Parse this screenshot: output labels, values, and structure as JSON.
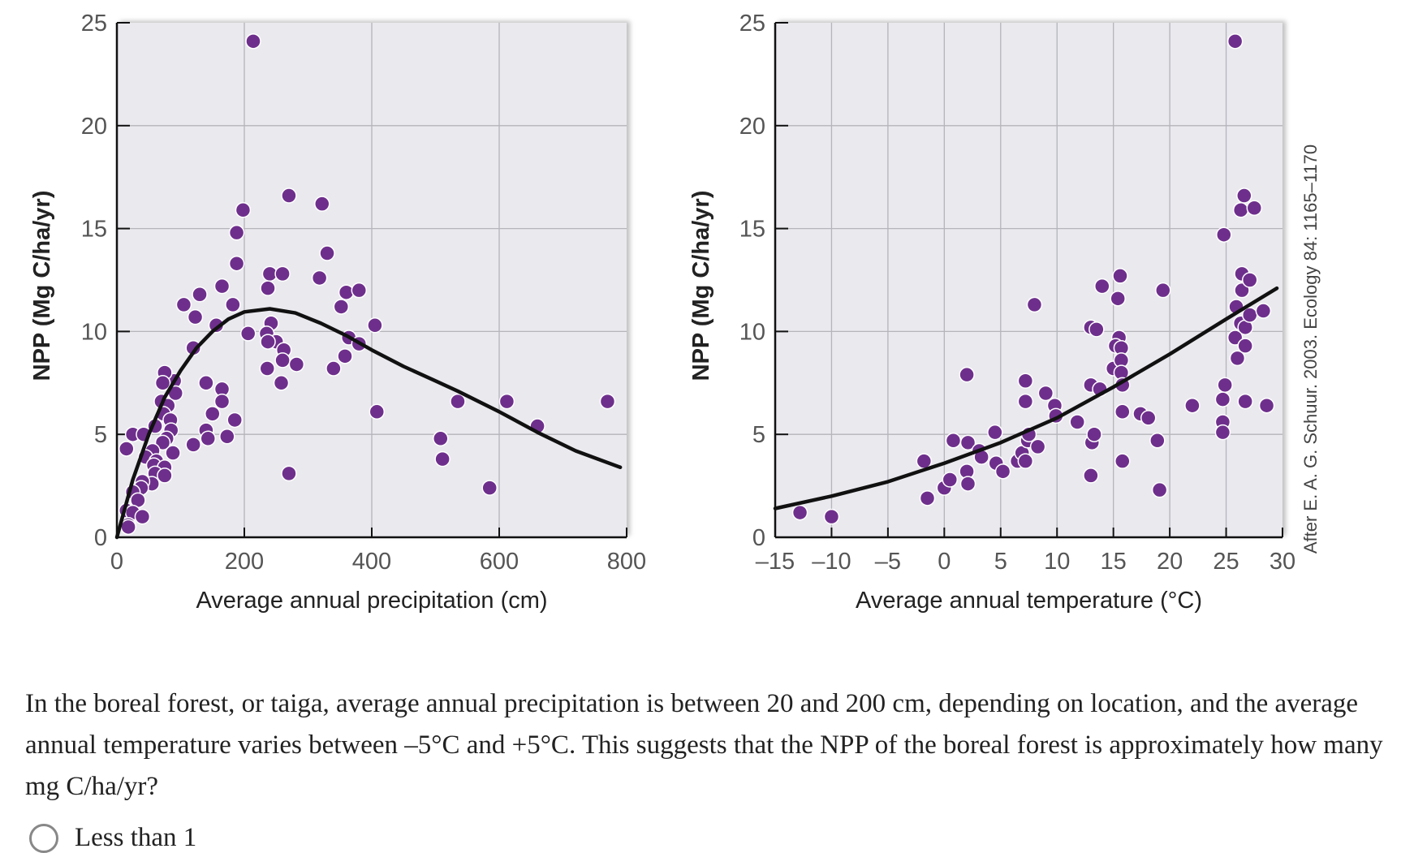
{
  "chart_data": [
    {
      "type": "scatter",
      "xlabel": "Average annual precipitation (cm)",
      "ylabel": "NPP (Mg C/ha/yr)",
      "xlim": [
        0,
        800
      ],
      "ylim": [
        0,
        25
      ],
      "xticks": [
        "0",
        "200",
        "400",
        "600",
        "800"
      ],
      "yticks": [
        "0",
        "5",
        "10",
        "15",
        "20",
        "25"
      ],
      "grid": true,
      "point_color": "#6e2f8c",
      "points": [
        [
          214,
          24.1
        ],
        [
          270,
          16.6
        ],
        [
          322,
          16.2
        ],
        [
          198,
          15.9
        ],
        [
          188,
          14.8
        ],
        [
          188,
          13.3
        ],
        [
          330,
          13.8
        ],
        [
          240,
          12.8
        ],
        [
          260,
          12.8
        ],
        [
          318,
          12.6
        ],
        [
          165,
          12.2
        ],
        [
          237,
          12.1
        ],
        [
          130,
          11.8
        ],
        [
          360,
          11.9
        ],
        [
          380,
          12.0
        ],
        [
          105,
          11.3
        ],
        [
          182,
          11.3
        ],
        [
          352,
          11.2
        ],
        [
          123,
          10.7
        ],
        [
          156,
          10.3
        ],
        [
          242,
          10.4
        ],
        [
          405,
          10.3
        ],
        [
          206,
          9.9
        ],
        [
          235,
          9.9
        ],
        [
          120,
          9.2
        ],
        [
          364,
          9.7
        ],
        [
          380,
          9.4
        ],
        [
          250,
          9.5
        ],
        [
          237,
          9.5
        ],
        [
          262,
          9.1
        ],
        [
          236,
          8.2
        ],
        [
          260,
          8.6
        ],
        [
          282,
          8.4
        ],
        [
          340,
          8.2
        ],
        [
          358,
          8.8
        ],
        [
          258,
          7.5
        ],
        [
          140,
          7.5
        ],
        [
          165,
          7.2
        ],
        [
          90,
          7.6
        ],
        [
          75,
          8.0
        ],
        [
          72,
          7.5
        ],
        [
          92,
          7.0
        ],
        [
          165,
          6.6
        ],
        [
          70,
          6.6
        ],
        [
          80,
          6.4
        ],
        [
          408,
          6.1
        ],
        [
          535,
          6.6
        ],
        [
          612,
          6.6
        ],
        [
          770,
          6.6
        ],
        [
          150,
          6.0
        ],
        [
          73,
          6.0
        ],
        [
          84,
          5.7
        ],
        [
          185,
          5.7
        ],
        [
          660,
          5.4
        ],
        [
          60,
          5.4
        ],
        [
          140,
          5.2
        ],
        [
          85,
          5.2
        ],
        [
          25,
          5.0
        ],
        [
          42,
          5.0
        ],
        [
          173,
          4.9
        ],
        [
          143,
          4.8
        ],
        [
          78,
          4.8
        ],
        [
          72,
          4.6
        ],
        [
          508,
          4.8
        ],
        [
          120,
          4.5
        ],
        [
          15,
          4.3
        ],
        [
          88,
          4.1
        ],
        [
          56,
          4.2
        ],
        [
          45,
          3.9
        ],
        [
          62,
          3.7
        ],
        [
          511,
          3.8
        ],
        [
          270,
          3.1
        ],
        [
          58,
          3.5
        ],
        [
          75,
          3.4
        ],
        [
          60,
          3.1
        ],
        [
          75,
          3.0
        ],
        [
          55,
          2.6
        ],
        [
          40,
          2.7
        ],
        [
          38,
          2.4
        ],
        [
          25,
          2.2
        ],
        [
          33,
          1.8
        ],
        [
          15,
          1.3
        ],
        [
          25,
          1.2
        ],
        [
          40,
          1.0
        ],
        [
          18,
          0.6
        ],
        [
          18,
          0.5
        ],
        [
          585,
          2.4
        ]
      ],
      "fit_curve": [
        [
          0,
          0
        ],
        [
          25,
          2.8
        ],
        [
          50,
          5.0
        ],
        [
          75,
          6.8
        ],
        [
          100,
          8.1
        ],
        [
          125,
          9.2
        ],
        [
          150,
          10.0
        ],
        [
          175,
          10.6
        ],
        [
          200,
          10.95
        ],
        [
          240,
          11.1
        ],
        [
          280,
          10.9
        ],
        [
          320,
          10.4
        ],
        [
          360,
          9.8
        ],
        [
          400,
          9.1
        ],
        [
          450,
          8.3
        ],
        [
          500,
          7.6
        ],
        [
          535,
          7.1
        ],
        [
          600,
          6.1
        ],
        [
          660,
          5.1
        ],
        [
          720,
          4.2
        ],
        [
          790,
          3.4
        ]
      ]
    },
    {
      "type": "scatter",
      "xlabel": "Average annual temperature (°C)",
      "ylabel": "NPP (Mg C/ha/yr)",
      "xlim": [
        -15,
        30
      ],
      "ylim": [
        0,
        25
      ],
      "xticks": [
        "–15",
        "–10",
        "–5",
        "0",
        "5",
        "10",
        "15",
        "20",
        "25",
        "30"
      ],
      "yticks": [
        "0",
        "5",
        "10",
        "15",
        "20",
        "25"
      ],
      "grid": true,
      "point_color": "#6e2f8c",
      "points": [
        [
          -12.8,
          1.2
        ],
        [
          -10,
          1.0
        ],
        [
          -1.8,
          3.7
        ],
        [
          -1.5,
          1.9
        ],
        [
          0,
          2.4
        ],
        [
          0.5,
          2.8
        ],
        [
          0.8,
          4.7
        ],
        [
          2.1,
          4.6
        ],
        [
          2,
          3.2
        ],
        [
          2.1,
          2.6
        ],
        [
          2,
          7.9
        ],
        [
          3.1,
          4.2
        ],
        [
          3.3,
          3.9
        ],
        [
          4.5,
          5.1
        ],
        [
          4.6,
          3.6
        ],
        [
          5.2,
          3.2
        ],
        [
          6.5,
          3.7
        ],
        [
          6.9,
          4.1
        ],
        [
          7.2,
          3.7
        ],
        [
          7.4,
          4.7
        ],
        [
          7.5,
          5.0
        ],
        [
          8.3,
          4.4
        ],
        [
          7.2,
          6.6
        ],
        [
          7.2,
          7.6
        ],
        [
          8,
          11.3
        ],
        [
          9,
          7.0
        ],
        [
          9.8,
          6.4
        ],
        [
          9.9,
          5.9
        ],
        [
          11.8,
          5.6
        ],
        [
          13,
          10.2
        ],
        [
          13.5,
          10.1
        ],
        [
          13,
          7.4
        ],
        [
          13.8,
          7.2
        ],
        [
          13.1,
          4.6
        ],
        [
          13.3,
          5.0
        ],
        [
          13,
          3.0
        ],
        [
          14,
          12.2
        ],
        [
          15.4,
          11.6
        ],
        [
          15.6,
          12.7
        ],
        [
          15.5,
          9.7
        ],
        [
          15.2,
          9.3
        ],
        [
          15.7,
          9.2
        ],
        [
          15,
          8.2
        ],
        [
          15.7,
          8.6
        ],
        [
          15.7,
          8.0
        ],
        [
          15.8,
          7.4
        ],
        [
          15.8,
          6.1
        ],
        [
          15.8,
          3.7
        ],
        [
          17.4,
          6.0
        ],
        [
          18.1,
          5.8
        ],
        [
          19.4,
          12.0
        ],
        [
          18.9,
          4.7
        ],
        [
          19.1,
          2.3
        ],
        [
          22,
          6.4
        ],
        [
          24.8,
          14.7
        ],
        [
          24.9,
          7.4
        ],
        [
          24.7,
          6.7
        ],
        [
          24.7,
          5.6
        ],
        [
          24.7,
          5.1
        ],
        [
          25.8,
          24.1
        ],
        [
          25.9,
          11.2
        ],
        [
          26.4,
          12.8
        ],
        [
          26.4,
          12.0
        ],
        [
          27.1,
          12.5
        ],
        [
          26.6,
          16.6
        ],
        [
          26.3,
          15.9
        ],
        [
          27.5,
          16.0
        ],
        [
          26.3,
          10.4
        ],
        [
          26.7,
          10.2
        ],
        [
          27.1,
          10.8
        ],
        [
          28.3,
          11.0
        ],
        [
          25.8,
          9.7
        ],
        [
          26.7,
          9.3
        ],
        [
          26,
          8.7
        ],
        [
          26.7,
          6.6
        ],
        [
          28.6,
          6.4
        ]
      ],
      "fit_curve": [
        [
          -15,
          1.4
        ],
        [
          -10,
          2.0
        ],
        [
          -5,
          2.7
        ],
        [
          0,
          3.6
        ],
        [
          5,
          4.6
        ],
        [
          10,
          5.8
        ],
        [
          15,
          7.3
        ],
        [
          20,
          8.9
        ],
        [
          25,
          10.6
        ],
        [
          29.5,
          12.1
        ]
      ],
      "citation": "After E. A. G. Schuur. 2003. Ecology 84: 1165–1170"
    }
  ],
  "question": {
    "text": "In the boreal forest, or taiga, average annual precipitation is between 20 and 200 cm, depending on location, and the average annual temperature varies between –5°C and +5°C. This suggests that the NPP of the boreal forest is approximately how many mg C/ha/yr?",
    "options": [
      {
        "label": "Less than 1",
        "selected": false
      }
    ]
  }
}
